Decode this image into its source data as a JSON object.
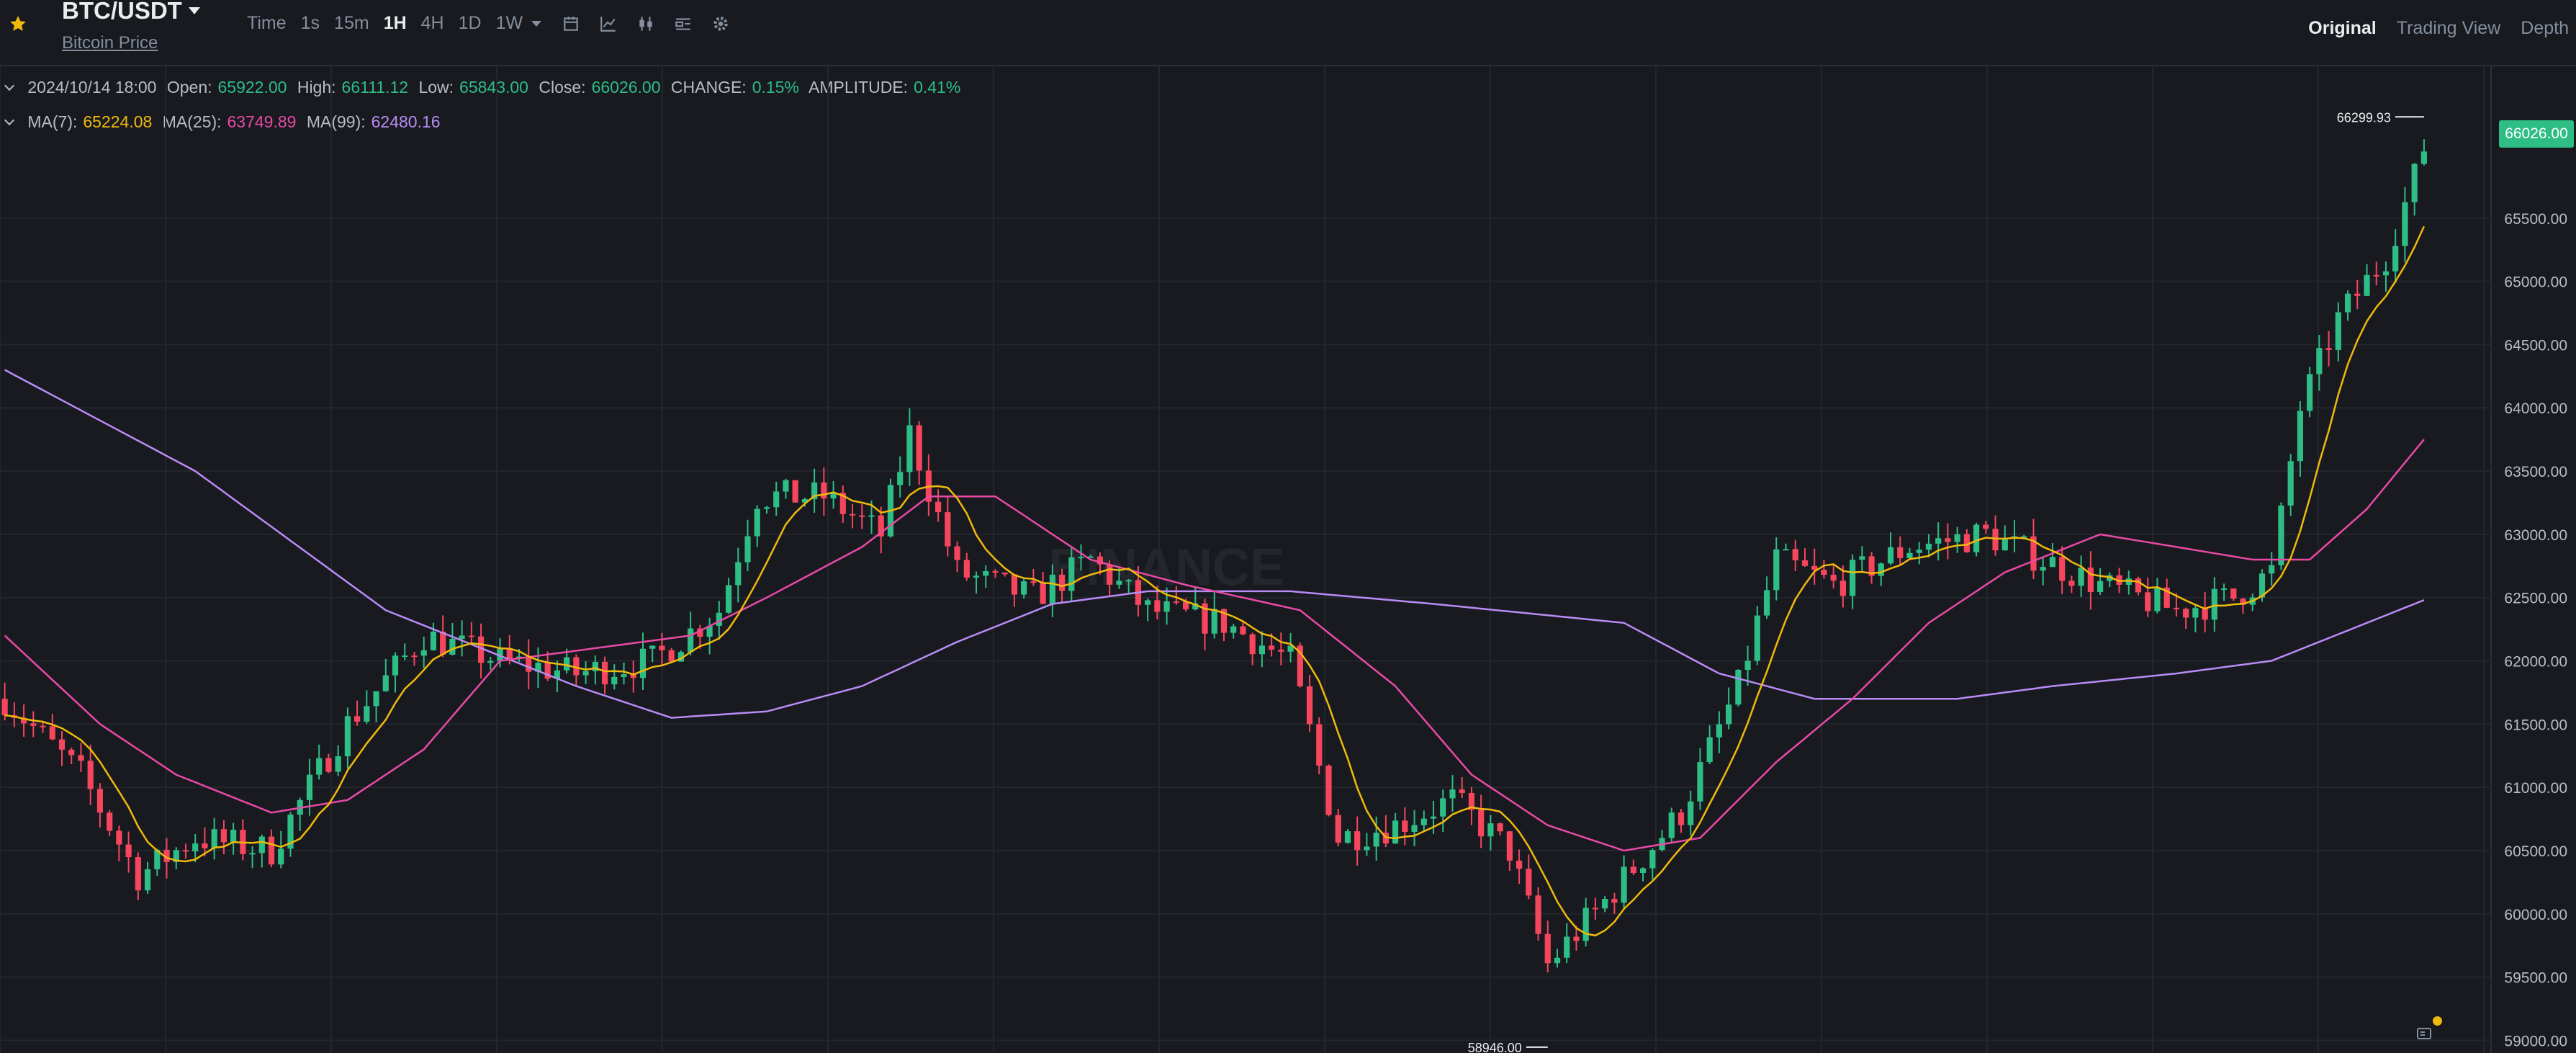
{
  "header": {
    "pair": "BTC/USDT",
    "subtitle": "Bitcoin Price",
    "intervals": [
      "Time",
      "1s",
      "15m",
      "1H",
      "4H",
      "1D",
      "1W"
    ],
    "active_interval": "1H",
    "tools": [
      "candle-type-icon",
      "indicator-icon",
      "candlestick-icon",
      "layout-icon",
      "settings-icon"
    ],
    "views": [
      "Original",
      "Trading View",
      "Depth"
    ],
    "active_view": "Original"
  },
  "ohlc": {
    "datetime": "2024/10/14 18:00",
    "open_label": "Open:",
    "open": "65922.00",
    "high_label": "High:",
    "high": "66111.12",
    "low_label": "Low:",
    "low": "65843.00",
    "close_label": "Close:",
    "close": "66026.00",
    "change_label": "CHANGE:",
    "change": "0.15%",
    "amplitude_label": "AMPLITUDE:",
    "amplitude": "0.41%"
  },
  "ma": {
    "ma7_label": "MA(7):",
    "ma7": "65224.08",
    "ma25_label": "MA(25):",
    "ma25": "63749.89",
    "ma99_label": "MA(99):",
    "ma99": "62480.16"
  },
  "current_price_tag": "66026.00",
  "colors": {
    "up": "#2ebd85",
    "down": "#f6465d",
    "ma7": "#f0b90b",
    "ma25": "#e84aa5",
    "ma99": "#b98cf5",
    "bg": "#181a20",
    "grid": "#23262d"
  },
  "chart_data": {
    "type": "candlestick",
    "y_axis_ticks": [
      "66026.00",
      "65500.00",
      "65000.00",
      "64500.00",
      "64000.00",
      "63500.00",
      "63000.00",
      "62500.00",
      "62000.00",
      "61500.00",
      "61000.00",
      "60500.00",
      "60000.00",
      "59500.00",
      "59000.00"
    ],
    "ylim": [
      58900,
      66700
    ],
    "grid": true,
    "high_marker": "66299.93",
    "low_marker": "58946.00",
    "watermark": "BINANCE",
    "trend_waypoints": [
      [
        0,
        61700
      ],
      [
        8,
        61100
      ],
      [
        14,
        60300
      ],
      [
        20,
        60600
      ],
      [
        28,
        60500
      ],
      [
        36,
        61500
      ],
      [
        44,
        62200
      ],
      [
        52,
        62000
      ],
      [
        60,
        61900
      ],
      [
        68,
        62000
      ],
      [
        75,
        62400
      ],
      [
        79,
        63300
      ],
      [
        86,
        63300
      ],
      [
        92,
        63000
      ],
      [
        95,
        63800
      ],
      [
        100,
        62700
      ],
      [
        108,
        62500
      ],
      [
        114,
        62800
      ],
      [
        120,
        62400
      ],
      [
        128,
        62300
      ],
      [
        135,
        62000
      ],
      [
        140,
        60600
      ],
      [
        146,
        60700
      ],
      [
        152,
        60900
      ],
      [
        158,
        60500
      ],
      [
        162,
        59600
      ],
      [
        168,
        60100
      ],
      [
        176,
        60800
      ],
      [
        182,
        61800
      ],
      [
        186,
        62800
      ],
      [
        192,
        62600
      ],
      [
        200,
        62900
      ],
      [
        208,
        63000
      ],
      [
        214,
        62800
      ],
      [
        220,
        62600
      ],
      [
        228,
        62400
      ],
      [
        234,
        62500
      ],
      [
        238,
        62700
      ],
      [
        241,
        64000
      ],
      [
        245,
        64700
      ],
      [
        250,
        65200
      ],
      [
        254,
        66026
      ]
    ],
    "candle_count": 255,
    "ma99_points": [
      [
        0,
        64300
      ],
      [
        20,
        63500
      ],
      [
        40,
        62400
      ],
      [
        60,
        61800
      ],
      [
        70,
        61550
      ],
      [
        80,
        61600
      ],
      [
        90,
        61800
      ],
      [
        100,
        62150
      ],
      [
        110,
        62450
      ],
      [
        120,
        62550
      ],
      [
        135,
        62550
      ],
      [
        150,
        62450
      ],
      [
        170,
        62300
      ],
      [
        180,
        61900
      ],
      [
        190,
        61700
      ],
      [
        205,
        61700
      ],
      [
        215,
        61800
      ],
      [
        228,
        61900
      ],
      [
        238,
        62000
      ],
      [
        248,
        62300
      ],
      [
        254,
        62480
      ]
    ],
    "ma25_points": [
      [
        0,
        62200
      ],
      [
        10,
        61500
      ],
      [
        18,
        61100
      ],
      [
        28,
        60800
      ],
      [
        36,
        60900
      ],
      [
        44,
        61300
      ],
      [
        52,
        62000
      ],
      [
        62,
        62100
      ],
      [
        72,
        62200
      ],
      [
        80,
        62500
      ],
      [
        90,
        62900
      ],
      [
        97,
        63300
      ],
      [
        104,
        63300
      ],
      [
        114,
        62800
      ],
      [
        124,
        62600
      ],
      [
        136,
        62400
      ],
      [
        146,
        61800
      ],
      [
        154,
        61100
      ],
      [
        162,
        60700
      ],
      [
        170,
        60500
      ],
      [
        178,
        60600
      ],
      [
        186,
        61200
      ],
      [
        194,
        61700
      ],
      [
        202,
        62300
      ],
      [
        210,
        62700
      ],
      [
        220,
        63000
      ],
      [
        228,
        62900
      ],
      [
        236,
        62800
      ],
      [
        242,
        62800
      ],
      [
        248,
        63200
      ],
      [
        254,
        63750
      ]
    ]
  }
}
